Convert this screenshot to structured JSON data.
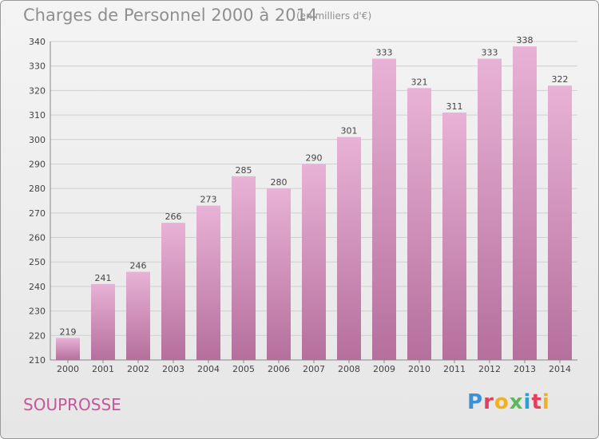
{
  "header": {
    "title": "Charges de Personnel 2000 à 2014",
    "subtitle": "(en milliers d'€)"
  },
  "footer": {
    "commune": "SOUPROSSE",
    "logo": {
      "letters": [
        "P",
        "r",
        "o",
        "x",
        "i",
        "t",
        "i"
      ],
      "colors": [
        "#3d8fd6",
        "#e2405b",
        "#f0b020",
        "#5cb85c",
        "#2a9fd6",
        "#e2405b",
        "#f0b020"
      ]
    }
  },
  "colors": {
    "bar_top": "#e8b2d6",
    "bar_bottom": "#b56f9c",
    "grid": "#cfcfcf",
    "axis_text": "#444444"
  },
  "chart_data": {
    "type": "bar",
    "title": "Charges de Personnel 2000 à 2014",
    "categories": [
      "2000",
      "2001",
      "2002",
      "2003",
      "2004",
      "2005",
      "2006",
      "2007",
      "2008",
      "2009",
      "2010",
      "2011",
      "2012",
      "2013",
      "2014"
    ],
    "values": [
      219,
      241,
      246,
      266,
      273,
      285,
      280,
      290,
      301,
      333,
      321,
      311,
      333,
      338,
      322
    ],
    "ylim": [
      210,
      340
    ],
    "yticks": [
      210,
      220,
      230,
      240,
      250,
      260,
      270,
      280,
      290,
      300,
      310,
      320,
      330,
      340
    ],
    "grid": true
  }
}
